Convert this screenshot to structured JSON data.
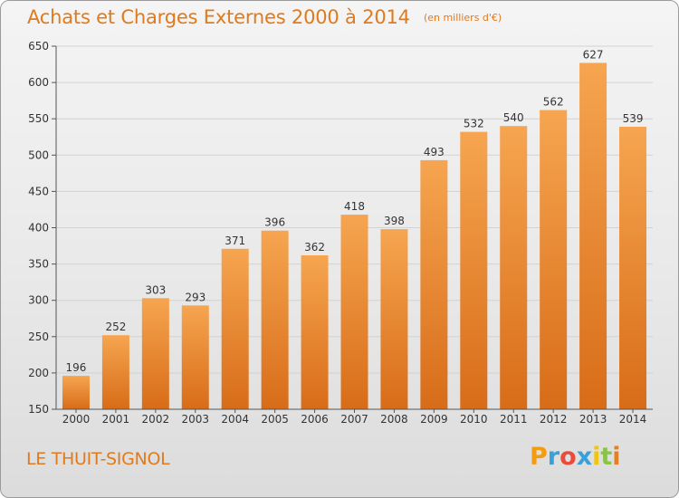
{
  "header": {
    "title": "Achats et Charges Externes 2000 à 2014",
    "subtitle": "(en milliers d'€)"
  },
  "footer": {
    "commune": "LE THUIT-SIGNOL",
    "logo_text": "Proxiti",
    "logo_colors": [
      "#f39c12",
      "#3aa0d8",
      "#e74c3c",
      "#3aa0d8",
      "#f1c40f",
      "#8bc34a",
      "#e67e22"
    ]
  },
  "colors": {
    "bar_light": "#f6a550",
    "bar_dark": "#d86c18",
    "grid": "#d2d2d2",
    "axis": "#555555",
    "text": "#333333",
    "accent": "#e07a1c"
  },
  "chart_data": {
    "type": "bar",
    "title": "Achats et Charges Externes 2000 à 2014",
    "subtitle": "(en milliers d'€)",
    "xlabel": "",
    "ylabel": "",
    "categories": [
      "2000",
      "2001",
      "2002",
      "2003",
      "2004",
      "2005",
      "2006",
      "2007",
      "2008",
      "2009",
      "2010",
      "2011",
      "2012",
      "2013",
      "2014"
    ],
    "values": [
      196,
      252,
      303,
      293,
      371,
      396,
      362,
      418,
      398,
      493,
      532,
      540,
      562,
      627,
      539
    ],
    "ylim": [
      150,
      650
    ],
    "yticks": [
      150,
      200,
      250,
      300,
      350,
      400,
      450,
      500,
      550,
      600,
      650
    ],
    "grid": true,
    "data_labels": true
  }
}
